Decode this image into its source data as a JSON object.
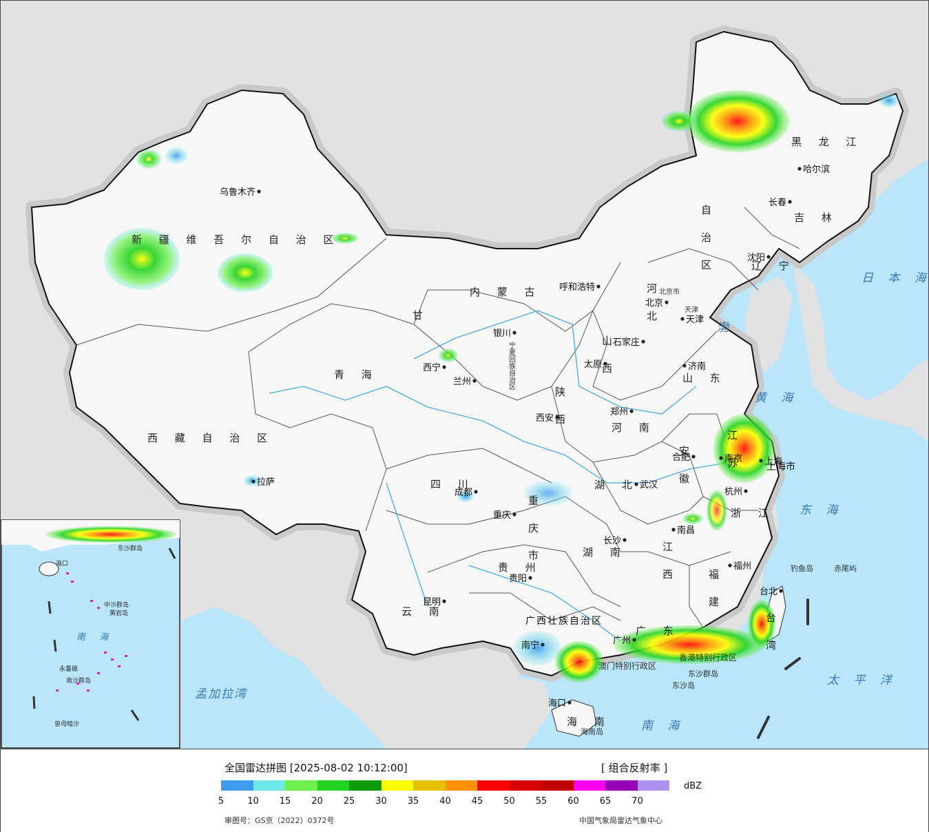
{
  "legend": {
    "title": "全国雷达拼图 [2025-08-02 10:12:00]",
    "product": "[ 组合反射率 ]",
    "unit": "dBZ",
    "ticks": [
      "5",
      "10",
      "15",
      "20",
      "25",
      "30",
      "35",
      "40",
      "45",
      "50",
      "55",
      "60",
      "65",
      "70"
    ],
    "colors": [
      "#3d9cf0",
      "#6ee8e8",
      "#70f04f",
      "#22d322",
      "#0f9a0f",
      "#ffff00",
      "#e6c000",
      "#ff9000",
      "#ff0000",
      "#d60000",
      "#c00000",
      "#ff00f0",
      "#9600b4",
      "#ad90f0"
    ],
    "approval": "审图号：GS京（2022）0372号",
    "agency": "中国气象局雷达气象中心"
  },
  "map": {
    "colors": {
      "land": "#f7f7f7",
      "sea": "#b9e6fb",
      "outside": "#e2e2e2",
      "border": "#111111",
      "river": "#4aa8e0"
    },
    "provinces": [
      {
        "name": "新疆维吾尔自治区",
        "text": "新 疆 维 吾 尔 自 治 区"
      },
      {
        "name": "西藏自治区",
        "text": "西 藏 自 治 区"
      },
      {
        "name": "青海",
        "text": "青  海"
      },
      {
        "name": "甘肃",
        "text": "甘"
      },
      {
        "name": "内蒙古",
        "text": "内  蒙  古"
      },
      {
        "name": "自治区",
        "text": "自 治 区"
      },
      {
        "name": "黑龙江",
        "text": "黑 龙 江"
      },
      {
        "name": "吉林",
        "text": "吉 林"
      },
      {
        "name": "辽宁",
        "text": "辽 宁"
      },
      {
        "name": "河北",
        "text": "河 北"
      },
      {
        "name": "山西",
        "text": "山 西"
      },
      {
        "name": "山东",
        "text": "山 东"
      },
      {
        "name": "河南",
        "text": "河 南"
      },
      {
        "name": "陕西",
        "text": "陕 西"
      },
      {
        "name": "四川",
        "text": "四 川"
      },
      {
        "name": "湖北",
        "text": "湖 北"
      },
      {
        "name": "湖南",
        "text": "湖 南"
      },
      {
        "name": "江西",
        "text": "江 西"
      },
      {
        "name": "浙江",
        "text": "浙 江"
      },
      {
        "name": "福建",
        "text": "福 建"
      },
      {
        "name": "贵州",
        "text": "贵 州"
      },
      {
        "name": "云南",
        "text": "云 南"
      },
      {
        "name": "广西壮族自治区",
        "text": "广西壮族自治区"
      },
      {
        "name": "广东",
        "text": "广 东"
      },
      {
        "name": "海南",
        "text": "海 南"
      },
      {
        "name": "安徽",
        "text": "安 徽"
      },
      {
        "name": "江苏",
        "text": "江 苏"
      },
      {
        "name": "重庆市",
        "text": "重 庆 市"
      },
      {
        "name": "台湾",
        "text": "台 湾"
      },
      {
        "name": "上海市",
        "text": "上海市"
      }
    ],
    "cities": [
      "乌鲁木齐",
      "拉萨",
      "西宁",
      "兰州",
      "银川",
      "呼和浩特",
      "北京",
      "天津",
      "石家庄",
      "太原",
      "济南",
      "郑州",
      "西安",
      "成都",
      "重庆",
      "武汉",
      "合肥",
      "南京",
      "上海",
      "杭州",
      "南昌",
      "长沙",
      "贵阳",
      "昆明",
      "南宁",
      "广州",
      "福州",
      "台北",
      "海口",
      "沈阳",
      "长春",
      "哈尔滨"
    ],
    "seas": [
      "日 本 海",
      "渤",
      "黄 海",
      "东 海",
      "太 平 洋",
      "南 海",
      "孟加拉湾"
    ],
    "islands": [
      "钓鱼岛",
      "赤尾屿",
      "东沙群岛",
      "东沙岛",
      "海南岛"
    ],
    "inset": {
      "title": "南 海",
      "labels": [
        "海口",
        "东沙群岛",
        "中沙群岛",
        "黄岩岛",
        "永暑礁",
        "南沙群岛",
        "曾母暗沙"
      ]
    },
    "hk_macau": "香港特别行政区",
    "macau": "澳门特别行政区",
    "ningxia": "宁夏回族自治区",
    "beijing_text": "北京市",
    "tianjin_text": "天津"
  }
}
